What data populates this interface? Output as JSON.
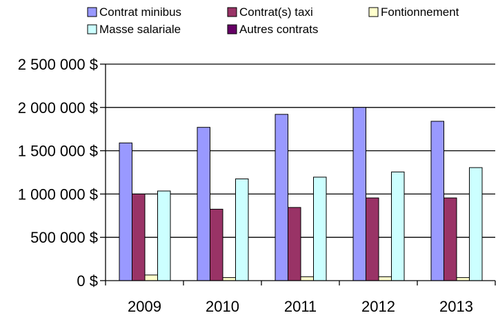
{
  "chart_data": {
    "type": "bar",
    "categories": [
      "2009",
      "2010",
      "2011",
      "2012",
      "2013"
    ],
    "series": [
      {
        "name": "Contrat minibus",
        "color": "#9999ff",
        "values": [
          1590000,
          1770000,
          1920000,
          2000000,
          1840000
        ]
      },
      {
        "name": "Contrat(s) taxi",
        "color": "#993366",
        "values": [
          1000000,
          825000,
          845000,
          955000,
          955000
        ]
      },
      {
        "name": "Fontionnement",
        "color": "#ffffcc",
        "values": [
          65000,
          35000,
          45000,
          45000,
          35000
        ]
      },
      {
        "name": "Masse salariale",
        "color": "#ccffff",
        "values": [
          1035000,
          1175000,
          1195000,
          1255000,
          1305000
        ]
      },
      {
        "name": "Autres contrats",
        "color": "#660066",
        "values": [
          0,
          0,
          0,
          0,
          0
        ]
      }
    ],
    "y_ticks": [
      "0 $",
      "500 000 $",
      "1 000 000 $",
      "1 500 000 $",
      "2 000 000 $",
      "2 500 000 $"
    ],
    "ylim": [
      0,
      2500000
    ],
    "y_step": 500000,
    "grid": true,
    "legend_position": "top"
  }
}
